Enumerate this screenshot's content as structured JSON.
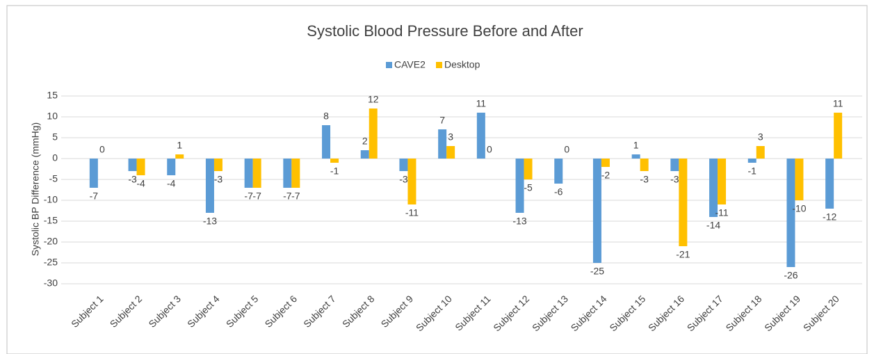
{
  "chart_data": {
    "type": "bar",
    "title": "Systolic Blood Pressure Before and After",
    "y_label": "Systolic BP Difference (mmHg)",
    "categories": [
      "Subject 1",
      "Subject 2",
      "Subject 3",
      "Subject 4",
      "Subject 5",
      "Subject 6",
      "Subject 7",
      "Subject 8",
      "Subject 9",
      "Subject 10",
      "Subject 11",
      "Subject 12",
      "Subject 13",
      "Subject 14",
      "Subject 15",
      "Subject 16",
      "Subject 17",
      "Subject 18",
      "Subject 19",
      "Subject 20"
    ],
    "series": [
      {
        "name": "CAVE2",
        "color": "#5b9bd5",
        "values": [
          -7,
          -3,
          -4,
          -13,
          -7,
          -7,
          8,
          2,
          -3,
          7,
          11,
          -13,
          -6,
          -25,
          1,
          -3,
          -14,
          -1,
          -26,
          -12
        ]
      },
      {
        "name": "Desktop",
        "color": "#ffc000",
        "values": [
          0,
          -4,
          1,
          -3,
          -7,
          -7,
          -1,
          12,
          -11,
          3,
          0,
          -5,
          0,
          -2,
          -3,
          -21,
          -11,
          3,
          -10,
          11
        ]
      }
    ],
    "ylim": [
      -30,
      15
    ],
    "yticks": [
      -30,
      -25,
      -20,
      -15,
      -10,
      -5,
      0,
      5,
      10,
      15
    ],
    "grid": true,
    "legend": "top"
  }
}
